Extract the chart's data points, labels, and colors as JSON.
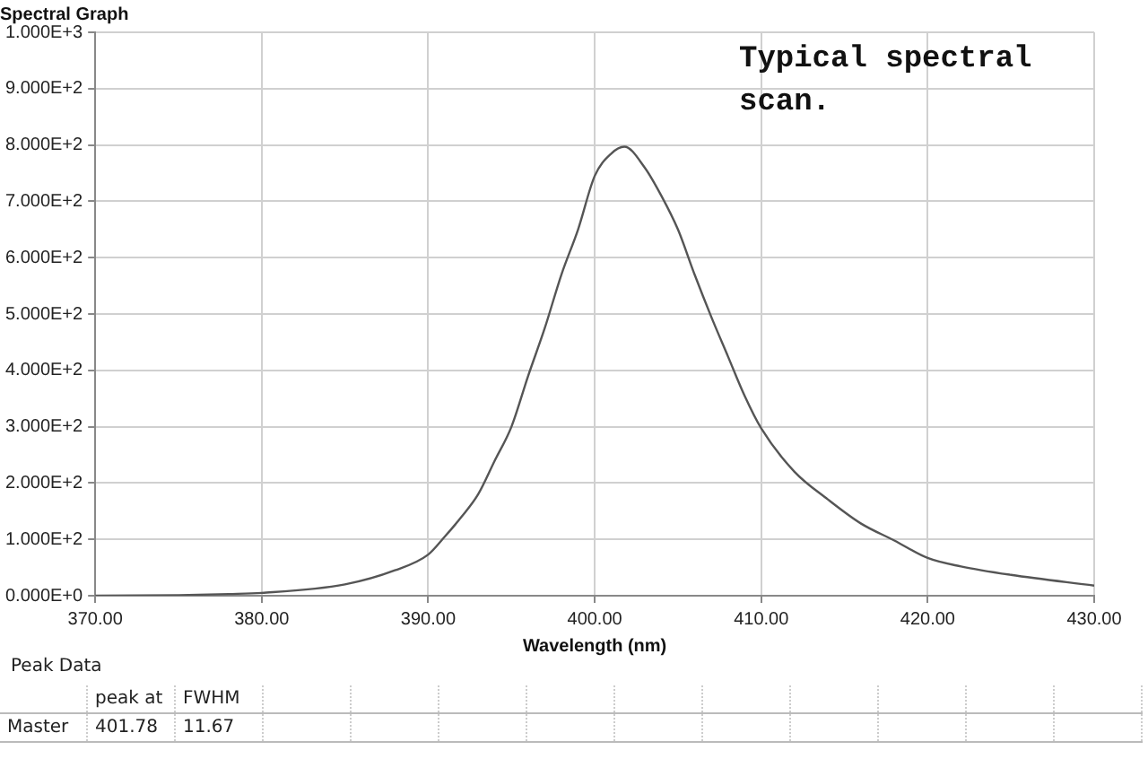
{
  "chart_data": {
    "type": "line",
    "title": "Spectral Graph",
    "xlabel": "Wavelength (nm)",
    "x": [
      370,
      375,
      378,
      380,
      385,
      388,
      390,
      391,
      392,
      393,
      394,
      395,
      396,
      397,
      398,
      399,
      400,
      401,
      401.78,
      403,
      404,
      405,
      406,
      407,
      408,
      409,
      410,
      412,
      414,
      416,
      418,
      420,
      422,
      425,
      430
    ],
    "series": [
      {
        "color": "#555555",
        "values": [
          0,
          1,
          3,
          5,
          20,
          45,
          73,
          105,
          140,
          180,
          240,
          300,
          390,
          475,
          570,
          650,
          745,
          785,
          797,
          760,
          710,
          650,
          570,
          495,
          425,
          355,
          297,
          220,
          171,
          128,
          98,
          67,
          52,
          37,
          18
        ]
      }
    ],
    "xlim": [
      370,
      430
    ],
    "xticks": [
      {
        "value": 370,
        "label": "370.00"
      },
      {
        "value": 380,
        "label": "380.00"
      },
      {
        "value": 390,
        "label": "390.00"
      },
      {
        "value": 400,
        "label": "400.00"
      },
      {
        "value": 410,
        "label": "410.00"
      },
      {
        "value": 420,
        "label": "420.00"
      },
      {
        "value": 430,
        "label": "430.00"
      }
    ],
    "ylim": [
      0,
      1000
    ],
    "yticks": [
      {
        "value": 0,
        "label": "0.000E+0"
      },
      {
        "value": 100,
        "label": "1.000E+2"
      },
      {
        "value": 200,
        "label": "2.000E+2"
      },
      {
        "value": 300,
        "label": "3.000E+2"
      },
      {
        "value": 400,
        "label": "4.000E+2"
      },
      {
        "value": 500,
        "label": "5.000E+2"
      },
      {
        "value": 600,
        "label": "6.000E+2"
      },
      {
        "value": 700,
        "label": "7.000E+2"
      },
      {
        "value": 800,
        "label": "8.000E+2"
      },
      {
        "value": 900,
        "label": "9.000E+2"
      },
      {
        "value": 1000,
        "label": "1.000E+3"
      }
    ],
    "grid": true,
    "marker": "none",
    "line_style": "solid",
    "legend": false,
    "annotations": [
      "Typical spectral scan.",
      "Peak Data",
      "peak at",
      "FWHM",
      "Master",
      "401.78",
      "11.67"
    ]
  }
}
